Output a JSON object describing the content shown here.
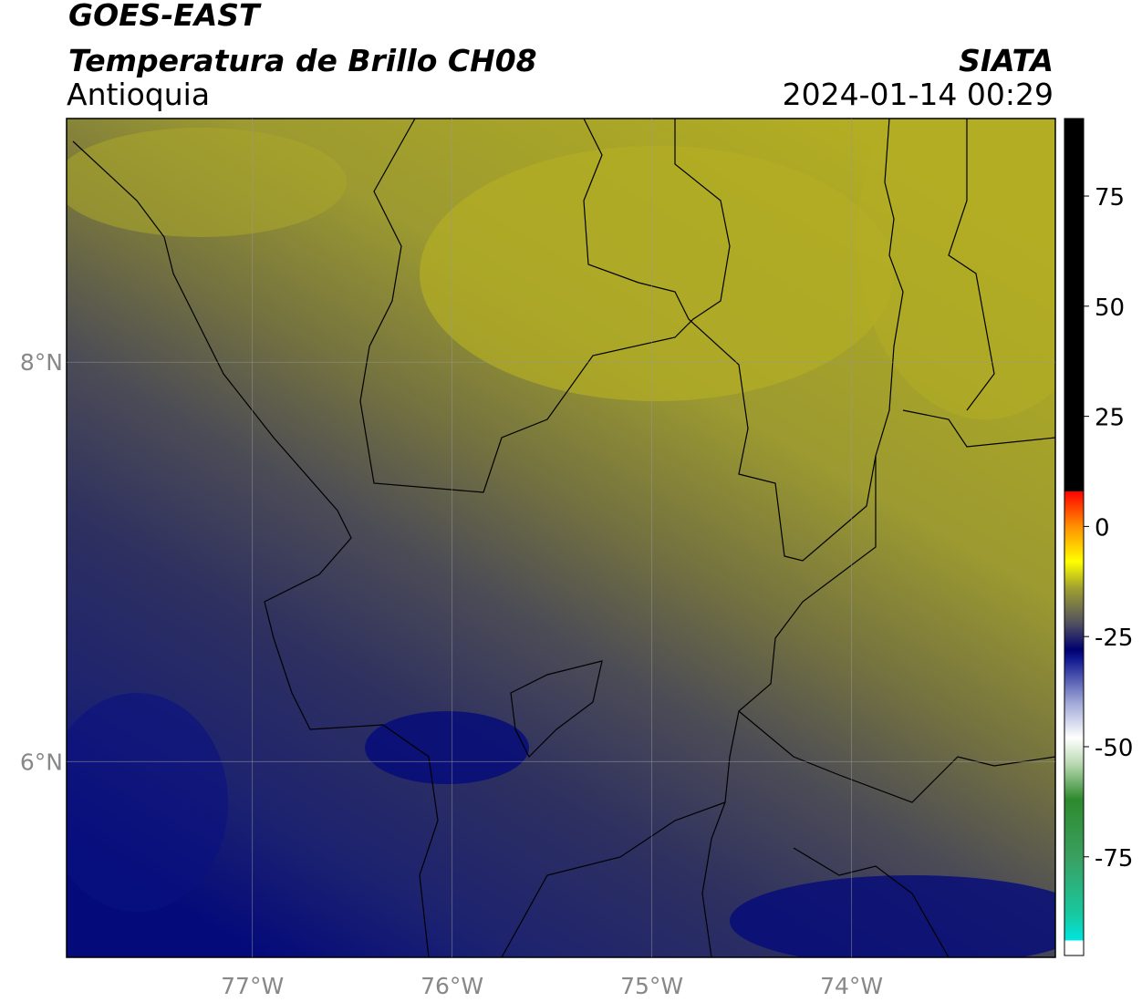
{
  "chart_data": {
    "type": "map",
    "title": "GOES-EAST",
    "subtitle": "Temperatura de Brillo CH08",
    "region": "Antioquia",
    "source": "SIATA",
    "timestamp": "2024-01-14 00:29",
    "xlim": [
      -77.93,
      -72.98
    ],
    "ylim": [
      5.02,
      9.22
    ],
    "xticks": [
      {
        "value": -77,
        "label": "77°W"
      },
      {
        "value": -76,
        "label": "76°W"
      },
      {
        "value": -75,
        "label": "75°W"
      },
      {
        "value": -74,
        "label": "74°W"
      }
    ],
    "yticks": [
      {
        "value": 6,
        "label": "6°N"
      },
      {
        "value": 8,
        "label": "8°N"
      }
    ],
    "grid": true,
    "colorbar": {
      "lim": [
        -97.4,
        92.6
      ],
      "ticks": [
        75,
        50,
        25,
        0,
        -25,
        -50,
        -75
      ],
      "stops": [
        {
          "value": -97.4,
          "color": "#ffffff"
        },
        {
          "value": -94,
          "color": "#ffffff"
        },
        {
          "value": -94,
          "color": "#00e5e0"
        },
        {
          "value": -88,
          "color": "#18c8a0"
        },
        {
          "value": -75,
          "color": "#3aa060"
        },
        {
          "value": -62,
          "color": "#2e8a2e"
        },
        {
          "value": -54,
          "color": "#b8d8b0"
        },
        {
          "value": -48,
          "color": "#ffffff"
        },
        {
          "value": -40,
          "color": "#a0a8d8"
        },
        {
          "value": -30,
          "color": "#101890"
        },
        {
          "value": -28,
          "color": "#000070"
        },
        {
          "value": -22,
          "color": "#505060"
        },
        {
          "value": -14,
          "color": "#a0a030"
        },
        {
          "value": -8,
          "color": "#ffff00"
        },
        {
          "value": 0,
          "color": "#ff9000"
        },
        {
          "value": 8,
          "color": "#ff0000"
        },
        {
          "value": 8,
          "color": "#000000"
        },
        {
          "value": 92.6,
          "color": "#000000"
        }
      ]
    }
  }
}
